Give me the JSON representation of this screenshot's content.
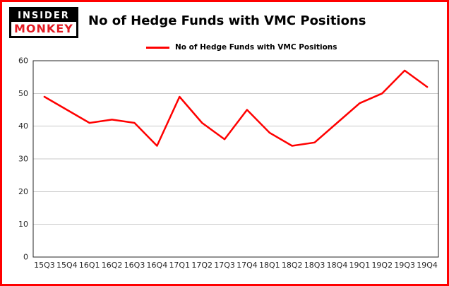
{
  "brand": {
    "line1": "INSIDER",
    "line2": "MONKEY"
  },
  "header": {
    "title": "No of Hedge Funds with VMC Positions"
  },
  "legend": {
    "label": "No of Hedge Funds with VMC Positions"
  },
  "colors": {
    "accent": "#ff0000",
    "frame_border": "#ff0000",
    "logo_red": "#e31b23",
    "gridline": "#c8c8c8"
  },
  "chart_data": {
    "type": "line",
    "title": "No of Hedge Funds with VMC Positions",
    "series_name": "No of Hedge Funds with VMC Positions",
    "categories": [
      "15Q3",
      "15Q4",
      "16Q1",
      "16Q2",
      "16Q3",
      "16Q4",
      "17Q1",
      "17Q2",
      "17Q3",
      "17Q4",
      "18Q1",
      "18Q2",
      "18Q3",
      "18Q4",
      "19Q1",
      "19Q2",
      "19Q3",
      "19Q4"
    ],
    "values": [
      49,
      45,
      41,
      42,
      41,
      34,
      49,
      41,
      36,
      45,
      38,
      34,
      35,
      41,
      47,
      50,
      57,
      52
    ],
    "xlabel": "",
    "ylabel": "",
    "ylim": [
      0,
      60
    ],
    "yticks": [
      0,
      10,
      20,
      30,
      40,
      50,
      60
    ],
    "grid": true,
    "line_color": "#ff0000",
    "legend_position": "top"
  }
}
